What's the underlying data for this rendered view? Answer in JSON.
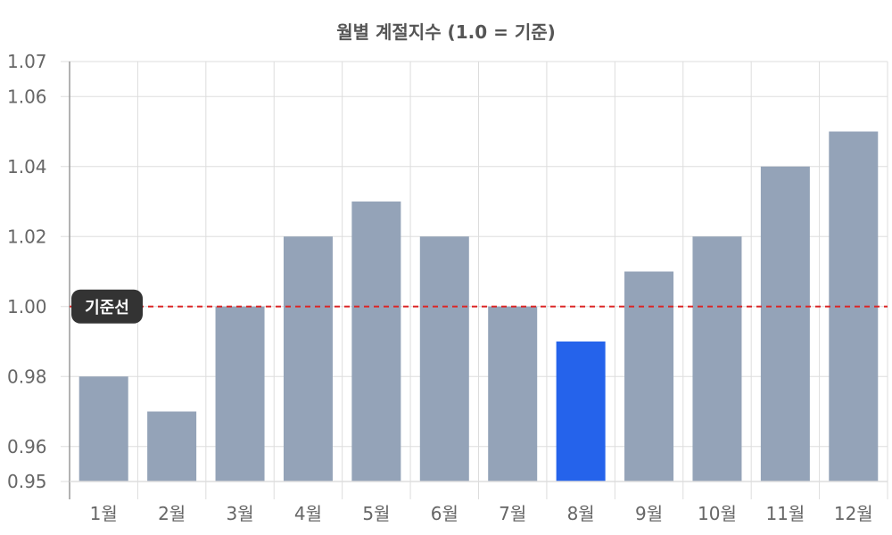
{
  "chart_data": {
    "type": "bar",
    "title": "월별 계절지수 (1.0 = 기준)",
    "xlabel": "",
    "ylabel": "",
    "categories": [
      "1월",
      "2월",
      "3월",
      "4월",
      "5월",
      "6월",
      "7월",
      "8월",
      "9월",
      "10월",
      "11월",
      "12월"
    ],
    "values": [
      0.98,
      0.97,
      1.0,
      1.02,
      1.03,
      1.02,
      1.0,
      0.99,
      1.01,
      1.02,
      1.04,
      1.05
    ],
    "ylim": [
      0.95,
      1.07
    ],
    "yticks": [
      "0.95",
      "0.96",
      "0.98",
      "1.00",
      "1.02",
      "1.04",
      "1.06",
      "1.07"
    ],
    "highlight_index": 7,
    "grid": true,
    "reference_line": {
      "value": 1.0,
      "label": "기준선",
      "style": "dashed",
      "color": "#dc2626"
    },
    "colors": {
      "bar": "#94a3b8",
      "highlight": "#2563eb",
      "grid": "#dddddd",
      "axis": "#999999",
      "badge": "#333333"
    }
  }
}
